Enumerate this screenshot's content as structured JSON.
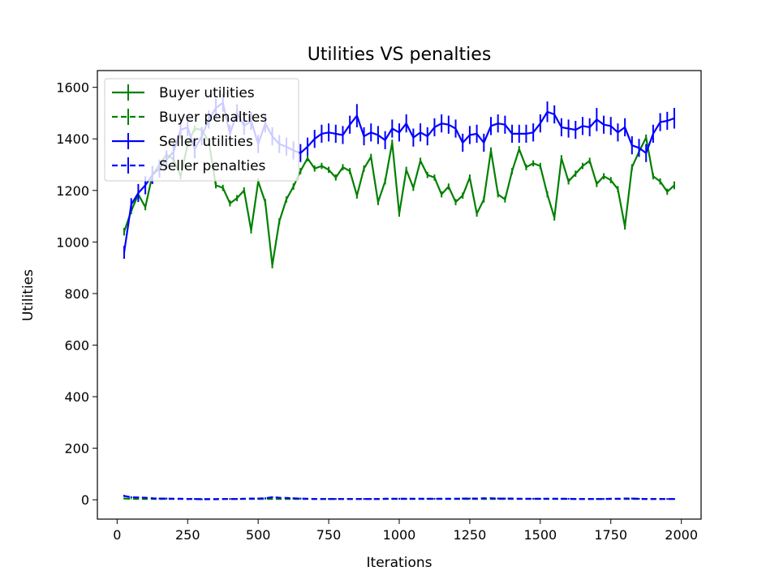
{
  "chart_data": {
    "type": "line",
    "title": "Utilities VS penalties",
    "xlabel": "Iterations",
    "ylabel": "Utilities",
    "xlim": [
      -70,
      2070
    ],
    "ylim": [
      -75,
      1665
    ],
    "x_ticks": [
      0,
      250,
      500,
      750,
      1000,
      1250,
      1500,
      1750,
      2000
    ],
    "y_ticks": [
      0,
      200,
      400,
      600,
      800,
      1000,
      1200,
      1400,
      1600
    ],
    "grid": false,
    "legend_placement": "top-left",
    "error_bars": true,
    "x": [
      25,
      50,
      75,
      100,
      125,
      150,
      175,
      200,
      225,
      250,
      275,
      300,
      325,
      350,
      375,
      400,
      425,
      450,
      475,
      500,
      525,
      550,
      575,
      600,
      625,
      650,
      675,
      700,
      725,
      750,
      775,
      800,
      825,
      850,
      875,
      900,
      925,
      950,
      975,
      1000,
      1025,
      1050,
      1075,
      1100,
      1125,
      1150,
      1175,
      1200,
      1225,
      1250,
      1275,
      1300,
      1325,
      1350,
      1375,
      1400,
      1425,
      1450,
      1475,
      1500,
      1525,
      1550,
      1575,
      1600,
      1625,
      1650,
      1675,
      1700,
      1725,
      1750,
      1775,
      1800,
      1825,
      1850,
      1875,
      1900,
      1925,
      1950,
      1975
    ],
    "series": [
      {
        "name": "Buyer utilities",
        "color": "#008000",
        "linestyle": "solid",
        "values": [
          1040,
          1120,
          1185,
          1135,
          1260,
          1300,
          1340,
          1320,
          1255,
          1380,
          1440,
          1435,
          1390,
          1220,
          1210,
          1150,
          1170,
          1200,
          1045,
          1235,
          1155,
          910,
          1080,
          1165,
          1215,
          1275,
          1325,
          1285,
          1295,
          1280,
          1250,
          1290,
          1275,
          1180,
          1285,
          1330,
          1155,
          1235,
          1385,
          1110,
          1280,
          1210,
          1315,
          1260,
          1250,
          1185,
          1215,
          1155,
          1180,
          1250,
          1110,
          1165,
          1355,
          1185,
          1165,
          1275,
          1360,
          1290,
          1305,
          1295,
          1185,
          1095,
          1325,
          1235,
          1265,
          1295,
          1315,
          1225,
          1255,
          1240,
          1205,
          1060,
          1290,
          1350,
          1405,
          1255,
          1235,
          1195,
          1220
        ],
        "errors": [
          15,
          12,
          12,
          12,
          12,
          12,
          12,
          12,
          12,
          12,
          12,
          12,
          12,
          12,
          12,
          12,
          12,
          12,
          12,
          12,
          12,
          12,
          12,
          12,
          12,
          12,
          12,
          12,
          12,
          12,
          12,
          12,
          12,
          12,
          12,
          12,
          12,
          12,
          12,
          12,
          12,
          12,
          12,
          12,
          12,
          12,
          12,
          12,
          12,
          12,
          12,
          12,
          12,
          12,
          12,
          12,
          12,
          12,
          12,
          12,
          12,
          12,
          12,
          12,
          12,
          12,
          12,
          12,
          12,
          12,
          12,
          12,
          12,
          12,
          12,
          12,
          12,
          12,
          15
        ]
      },
      {
        "name": "Buyer penalties",
        "color": "#008000",
        "linestyle": "dashed",
        "values": [
          5,
          4,
          3,
          3,
          3,
          3,
          3,
          3,
          3,
          3,
          3,
          3,
          3,
          3,
          3,
          3,
          3,
          3,
          3,
          3,
          3,
          3,
          3,
          3,
          3,
          3,
          3,
          3,
          3,
          3,
          3,
          3,
          3,
          3,
          3,
          3,
          3,
          3,
          3,
          3,
          3,
          3,
          3,
          3,
          3,
          3,
          3,
          3,
          3,
          3,
          3,
          3,
          3,
          3,
          3,
          3,
          3,
          3,
          3,
          3,
          3,
          3,
          3,
          3,
          3,
          3,
          3,
          3,
          3,
          3,
          3,
          3,
          3,
          3,
          3,
          3,
          3,
          3,
          3
        ],
        "errors": [
          3,
          2,
          2,
          2,
          2,
          2,
          2,
          2,
          2,
          2,
          2,
          2,
          2,
          2,
          2,
          2,
          2,
          2,
          2,
          2,
          2,
          2,
          2,
          2,
          2,
          2,
          2,
          2,
          2,
          2,
          2,
          2,
          2,
          2,
          2,
          2,
          2,
          2,
          2,
          2,
          2,
          2,
          2,
          2,
          2,
          2,
          2,
          2,
          2,
          2,
          2,
          2,
          2,
          2,
          2,
          2,
          2,
          2,
          2,
          2,
          2,
          2,
          2,
          2,
          2,
          2,
          2,
          2,
          2,
          2,
          2,
          2,
          2,
          2,
          2,
          2,
          2,
          2,
          2
        ]
      },
      {
        "name": "Seller utilities",
        "color": "#0000ff",
        "linestyle": "solid",
        "values": [
          960,
          1145,
          1190,
          1220,
          1260,
          1285,
          1320,
          1350,
          1435,
          1445,
          1360,
          1410,
          1475,
          1520,
          1540,
          1420,
          1500,
          1450,
          1470,
          1380,
          1460,
          1410,
          1380,
          1370,
          1355,
          1345,
          1370,
          1400,
          1420,
          1425,
          1420,
          1415,
          1455,
          1490,
          1410,
          1425,
          1415,
          1395,
          1440,
          1425,
          1460,
          1405,
          1425,
          1410,
          1445,
          1460,
          1455,
          1440,
          1385,
          1415,
          1420,
          1385,
          1450,
          1460,
          1455,
          1420,
          1420,
          1420,
          1425,
          1460,
          1505,
          1495,
          1445,
          1440,
          1435,
          1450,
          1445,
          1475,
          1455,
          1450,
          1425,
          1445,
          1375,
          1365,
          1345,
          1420,
          1465,
          1470,
          1480
        ],
        "errors": [
          25,
          25,
          35,
          35,
          35,
          35,
          35,
          35,
          35,
          35,
          35,
          35,
          35,
          35,
          35,
          35,
          35,
          35,
          35,
          35,
          35,
          35,
          35,
          35,
          35,
          35,
          35,
          35,
          35,
          35,
          35,
          35,
          35,
          45,
          35,
          35,
          35,
          35,
          35,
          35,
          35,
          35,
          35,
          35,
          35,
          35,
          35,
          35,
          35,
          35,
          35,
          35,
          35,
          35,
          35,
          35,
          35,
          35,
          35,
          35,
          40,
          35,
          35,
          35,
          35,
          35,
          35,
          45,
          35,
          35,
          35,
          35,
          35,
          35,
          35,
          35,
          35,
          35,
          40
        ]
      },
      {
        "name": "Seller penalties",
        "color": "#0000ff",
        "linestyle": "dashed",
        "values": [
          15,
          10,
          9,
          8,
          6,
          5,
          5,
          4,
          4,
          3,
          3,
          2,
          2,
          2,
          3,
          3,
          3,
          4,
          5,
          5,
          6,
          10,
          8,
          7,
          6,
          5,
          4,
          3,
          3,
          3,
          3,
          3,
          3,
          3,
          3,
          3,
          3,
          4,
          4,
          4,
          4,
          4,
          4,
          4,
          4,
          4,
          4,
          4,
          5,
          5,
          5,
          6,
          6,
          5,
          5,
          5,
          4,
          4,
          4,
          4,
          4,
          4,
          4,
          4,
          3,
          3,
          3,
          3,
          3,
          4,
          4,
          5,
          5,
          4,
          3,
          3,
          3,
          3,
          3
        ],
        "errors": [
          4,
          3,
          3,
          3,
          3,
          3,
          3,
          3,
          3,
          3,
          3,
          3,
          3,
          3,
          3,
          3,
          3,
          3,
          3,
          3,
          3,
          3,
          3,
          3,
          3,
          3,
          3,
          3,
          3,
          3,
          3,
          3,
          3,
          3,
          3,
          3,
          3,
          3,
          3,
          3,
          3,
          3,
          3,
          3,
          3,
          3,
          3,
          3,
          3,
          3,
          3,
          3,
          3,
          3,
          3,
          3,
          3,
          3,
          3,
          3,
          3,
          3,
          3,
          3,
          3,
          3,
          3,
          3,
          3,
          3,
          3,
          3,
          3,
          3,
          3,
          3,
          3,
          3,
          3
        ]
      }
    ]
  }
}
